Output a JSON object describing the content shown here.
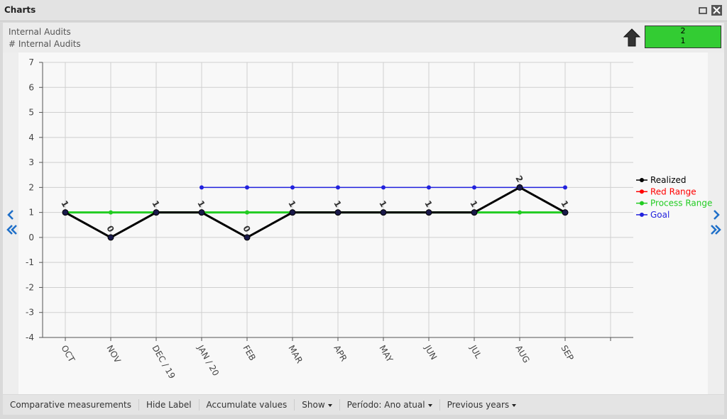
{
  "window": {
    "title": "Charts"
  },
  "header": {
    "title": "Internal Audits",
    "subtitle": "# Internal Audits",
    "indicator": [
      "2",
      "1"
    ]
  },
  "toolbar": [
    "Comparative measurements",
    "Hide Label",
    "Accumulate values",
    "Show",
    "Período: Ano atual",
    "Previous years"
  ],
  "chart_data": {
    "type": "line",
    "categories": [
      "OCT",
      "NOV",
      "DEC / 19",
      "JAN / 20",
      "FEB",
      "MAR",
      "APR",
      "MAY",
      "JUN",
      "JUL",
      "AUG",
      "SEP",
      null
    ],
    "series": [
      {
        "name": "Realized",
        "color": "#000000",
        "values": [
          1,
          0,
          1,
          1,
          0,
          1,
          1,
          1,
          1,
          1,
          2,
          1,
          null
        ]
      },
      {
        "name": "Red Range",
        "color": "#ff0000",
        "values": [
          null,
          null,
          null,
          null,
          null,
          null,
          null,
          null,
          null,
          null,
          null,
          null,
          null
        ]
      },
      {
        "name": "Process Range",
        "color": "#22cc22",
        "values": [
          1,
          1,
          1,
          1,
          1,
          1,
          1,
          1,
          1,
          1,
          1,
          1,
          null
        ]
      },
      {
        "name": "Goal",
        "color": "#2222dd",
        "values": [
          null,
          null,
          null,
          2,
          2,
          2,
          2,
          2,
          2,
          2,
          2,
          2,
          null
        ]
      }
    ],
    "ylim": [
      -4,
      7
    ],
    "yticks": [
      -4,
      -3,
      -2,
      -1,
      0,
      1,
      2,
      3,
      4,
      5,
      6,
      7
    ],
    "grid": true,
    "legend": "right",
    "data_labels": "Realized"
  }
}
